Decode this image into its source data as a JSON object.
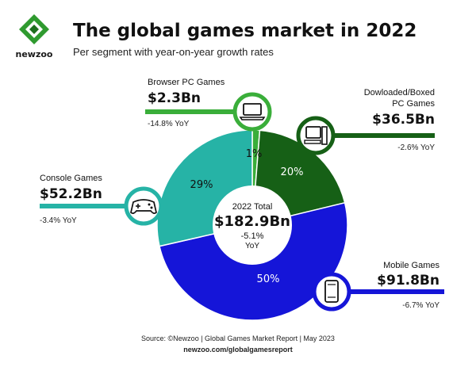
{
  "brand": {
    "name": "newzoo",
    "green": "#2f9a2f"
  },
  "header": {
    "title": "The global games market in 2022",
    "subtitle": "Per segment with year-on-year growth rates"
  },
  "chart_data": {
    "type": "pie",
    "center": {
      "label": "2022 Total",
      "value": "$182.9Bn",
      "yoy": "-5.1%",
      "yoy_unit": "YoY"
    },
    "segments": [
      {
        "name": "Browser PC Games",
        "value": 2.3,
        "value_label": "$2.3Bn",
        "yoy": "-14.8% YoY",
        "pct_label": "1%",
        "color": "#3aae3a",
        "icon": "laptop-icon"
      },
      {
        "name": "Dowloaded/Boxed",
        "name2": "PC Games",
        "value": 36.5,
        "value_label": "$36.5Bn",
        "yoy": "-2.6% YoY",
        "pct_label": "20%",
        "color": "#166016",
        "icon": "desktop-pc-icon"
      },
      {
        "name": "Mobile Games",
        "value": 91.8,
        "value_label": "$91.8Bn",
        "yoy": "-6.7% YoY",
        "pct_label": "50%",
        "color": "#1515d8",
        "icon": "smartphone-icon"
      },
      {
        "name": "Console Games",
        "value": 52.2,
        "value_label": "$52.2Bn",
        "yoy": "-3.4% YoY",
        "pct_label": "29%",
        "color": "#26b3a6",
        "icon": "gamepad-icon"
      }
    ]
  },
  "footer": {
    "source": "Source: ©Newzoo | Global Games Market Report | May 2023",
    "url": "newzoo.com/globalgamesreport"
  }
}
